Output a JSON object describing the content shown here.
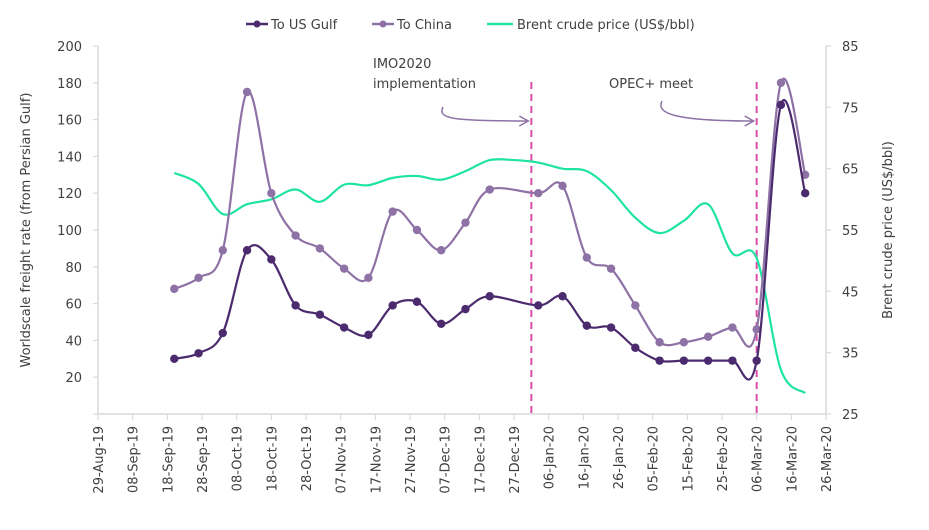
{
  "chart_data": {
    "type": "line",
    "title": "",
    "legend": {
      "placement": "top-center",
      "entries": [
        "To US Gulf",
        "To China",
        "Brent crude price (US$/bbl)"
      ]
    },
    "y_left": {
      "label": "Worldscale freight rate (from Persian Gulf)",
      "range": [
        0,
        200
      ],
      "ticks": [
        20,
        40,
        60,
        80,
        100,
        120,
        140,
        160,
        180,
        200
      ]
    },
    "y_right": {
      "label": "Brent crude price (US$/bbl)",
      "range": [
        25,
        85
      ],
      "ticks": [
        25,
        35,
        45,
        55,
        65,
        75,
        85
      ]
    },
    "x_axis": {
      "start": "2019-08-29",
      "end": "2020-03-26",
      "tick_dates": [
        "2019-08-29",
        "2019-09-08",
        "2019-09-18",
        "2019-09-28",
        "2019-10-08",
        "2019-10-18",
        "2019-10-28",
        "2019-11-07",
        "2019-11-17",
        "2019-11-27",
        "2019-12-07",
        "2019-12-17",
        "2019-12-27",
        "2020-01-06",
        "2020-01-16",
        "2020-01-26",
        "2020-02-05",
        "2020-02-15",
        "2020-02-25",
        "2020-03-06",
        "2020-03-16",
        "2020-03-26"
      ],
      "tick_labels": [
        "29-Aug-19",
        "08-Sep-19",
        "18-Sep-19",
        "28-Sep-19",
        "08-Oct-19",
        "18-Oct-19",
        "28-Oct-19",
        "07-Nov-19",
        "17-Nov-19",
        "27-Nov-19",
        "07-Dec-19",
        "17-Dec-19",
        "27-Dec-19",
        "06-Jan-20",
        "16-Jan-20",
        "26-Jan-20",
        "05-Feb-20",
        "15-Feb-20",
        "25-Feb-20",
        "06-Mar-20",
        "16-Mar-20",
        "26-Mar-20"
      ]
    },
    "grid": false,
    "series": [
      {
        "name": "To US Gulf",
        "axis": "left",
        "color": "#4b2a6e",
        "markers": true,
        "x": [
          "2019-09-20",
          "2019-09-27",
          "2019-10-04",
          "2019-10-11",
          "2019-10-18",
          "2019-10-25",
          "2019-11-01",
          "2019-11-08",
          "2019-11-15",
          "2019-11-22",
          "2019-11-29",
          "2019-12-06",
          "2019-12-13",
          "2019-12-20",
          "2020-01-03",
          "2020-01-10",
          "2020-01-17",
          "2020-01-24",
          "2020-01-31",
          "2020-02-07",
          "2020-02-14",
          "2020-02-21",
          "2020-02-28",
          "2020-03-06",
          "2020-03-13",
          "2020-03-20"
        ],
        "values": [
          30,
          33,
          44,
          89,
          84,
          59,
          54,
          47,
          43,
          59,
          61,
          49,
          57,
          64,
          59,
          64,
          48,
          47,
          36,
          29,
          29,
          29,
          29,
          29,
          168,
          120
        ]
      },
      {
        "name": "To China",
        "axis": "left",
        "color": "#8e72a6",
        "markers": true,
        "x": [
          "2019-09-20",
          "2019-09-27",
          "2019-10-04",
          "2019-10-11",
          "2019-10-18",
          "2019-10-25",
          "2019-11-01",
          "2019-11-08",
          "2019-11-15",
          "2019-11-22",
          "2019-11-29",
          "2019-12-06",
          "2019-12-13",
          "2019-12-20",
          "2020-01-03",
          "2020-01-10",
          "2020-01-17",
          "2020-01-24",
          "2020-01-31",
          "2020-02-07",
          "2020-02-14",
          "2020-02-21",
          "2020-02-28",
          "2020-03-06",
          "2020-03-13",
          "2020-03-20"
        ],
        "values": [
          68,
          74,
          89,
          175,
          120,
          97,
          90,
          79,
          74,
          110,
          100,
          89,
          104,
          122,
          120,
          124,
          85,
          79,
          59,
          39,
          39,
          42,
          47,
          46,
          180,
          130
        ]
      },
      {
        "name": "Brent crude price (US$/bbl)",
        "axis": "right",
        "color": "#1ee3a2",
        "markers": false,
        "x": [
          "2019-09-20",
          "2019-09-27",
          "2019-10-04",
          "2019-10-11",
          "2019-10-18",
          "2019-10-25",
          "2019-11-01",
          "2019-11-08",
          "2019-11-15",
          "2019-11-22",
          "2019-11-29",
          "2019-12-06",
          "2019-12-13",
          "2019-12-20",
          "2019-12-27",
          "2020-01-03",
          "2020-01-10",
          "2020-01-17",
          "2020-01-24",
          "2020-01-31",
          "2020-02-07",
          "2020-02-14",
          "2020-02-21",
          "2020-02-28",
          "2020-03-06",
          "2020-03-13",
          "2020-03-20"
        ],
        "values": [
          64.3,
          62.5,
          57.6,
          59.2,
          60.0,
          61.6,
          59.6,
          62.4,
          62.3,
          63.5,
          63.8,
          63.2,
          64.6,
          66.4,
          66.4,
          66.0,
          65.0,
          64.6,
          61.5,
          57.0,
          54.5,
          56.5,
          59.2,
          51.2,
          50.4,
          32.2,
          28.4
        ]
      }
    ],
    "annotations": [
      {
        "id": "imo2020",
        "lines": [
          "IMO2020",
          "implementation"
        ],
        "marker_date": "2020-01-01",
        "style": "dashed-vertical"
      },
      {
        "id": "opec",
        "lines": [
          "OPEC+ meet"
        ],
        "marker_date": "2020-03-06",
        "style": "dashed-vertical"
      }
    ],
    "annotation_color": "#d94fa8"
  }
}
